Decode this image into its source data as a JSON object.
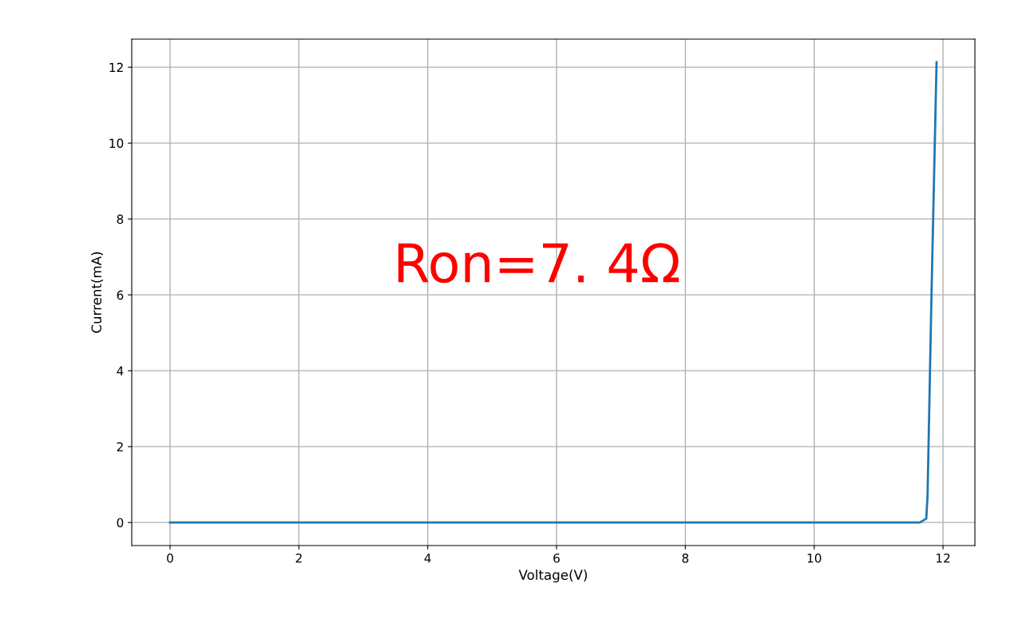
{
  "chart_data": {
    "type": "line",
    "xlabel": "Voltage(V)",
    "ylabel": "Current(mA)",
    "x": [
      0,
      11.64,
      11.74,
      11.76,
      11.82,
      11.9
    ],
    "series": [
      {
        "color": "#1f77b4",
        "values": [
          0,
          0,
          0.1,
          0.7,
          5.9,
          12.13
        ]
      }
    ],
    "xlim": [
      -0.595,
      12.495
    ],
    "ylim": [
      -0.607,
      12.74
    ],
    "xticks": [
      0,
      2,
      4,
      6,
      8,
      10,
      12
    ],
    "yticks": [
      0,
      2,
      4,
      6,
      8,
      10,
      12
    ],
    "grid": true,
    "annotations": [
      "Ron=7. 4Ω"
    ]
  }
}
